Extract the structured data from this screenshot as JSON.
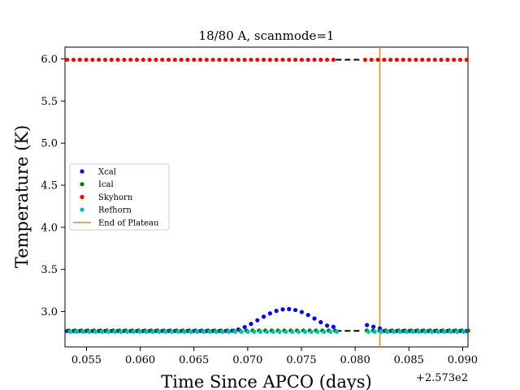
{
  "chart_data": {
    "type": "scatter",
    "title": "18/80 A, scanmode=1",
    "xlabel": "Time Since APCO (days)",
    "ylabel": "Temperature (K)",
    "x_offset_label": "+2.573e2",
    "xlim": [
      0.053,
      0.0905
    ],
    "ylim": [
      2.58,
      6.14
    ],
    "x_ticks": [
      0.055,
      0.06,
      0.065,
      0.07,
      0.075,
      0.08,
      0.085,
      0.09
    ],
    "x_tick_labels": [
      "0.055",
      "0.060",
      "0.065",
      "0.070",
      "0.075",
      "0.080",
      "0.085",
      "0.090"
    ],
    "y_ticks": [
      3.0,
      3.5,
      4.0,
      4.5,
      5.0,
      5.5,
      6.0
    ],
    "y_tick_labels": [
      "3.0",
      "3.5",
      "4.0",
      "4.5",
      "5.0",
      "5.5",
      "6.0"
    ],
    "gap": {
      "x_start": 0.0782,
      "x_end": 0.0806
    },
    "series": [
      {
        "name": "Xcal",
        "color": "#0000ff",
        "baseline": 2.77,
        "bump_center": 0.0737,
        "bump_halfwidth": 0.0055,
        "bump_peak": 3.03,
        "tail": [
          [
            0.0811,
            2.84
          ],
          [
            0.0817,
            2.82
          ],
          [
            0.0823,
            2.8
          ]
        ]
      },
      {
        "name": "Ical",
        "color": "#008000",
        "value": 2.775
      },
      {
        "name": "Skyhorn",
        "color": "#ff0000",
        "value": 5.99
      },
      {
        "name": "Refhorn",
        "color": "#00bfbf",
        "value": 2.76
      }
    ],
    "sample_step": 0.00059,
    "x_start": 0.0532,
    "x_end": 0.0905,
    "gap_fill_lines": [
      {
        "y": 5.99,
        "color": "#000000"
      },
      {
        "y": 2.77,
        "color": "#000000"
      }
    ],
    "vline": {
      "name": "End of Plateau",
      "x": 0.0823,
      "color": "#ff7f0e"
    },
    "legend": {
      "placement": "center-left",
      "entries": [
        "Xcal",
        "Ical",
        "Skyhorn",
        "Refhorn",
        "End of Plateau"
      ]
    }
  }
}
